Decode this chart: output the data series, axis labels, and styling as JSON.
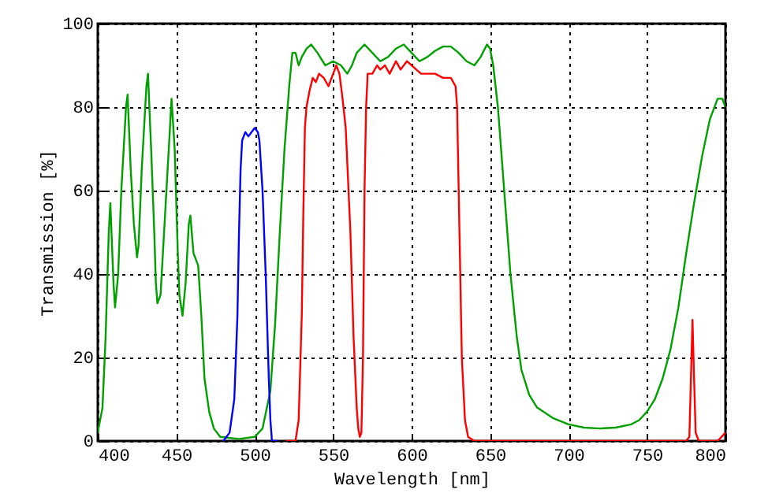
{
  "chart_data": {
    "type": "line",
    "xlabel": "Wavelength [nm]",
    "ylabel": "Transmission [%]",
    "xlim": [
      400,
      800
    ],
    "ylim": [
      0,
      100
    ],
    "xticks": [
      400,
      450,
      500,
      550,
      600,
      650,
      700,
      750,
      800
    ],
    "yticks": [
      0,
      20,
      40,
      60,
      80,
      100
    ],
    "grid": true,
    "line_style": "solid",
    "series": [
      {
        "color": "#00a000",
        "x": [
          400,
          403,
          405,
          407,
          408,
          410,
          411,
          413,
          415,
          418,
          419,
          421,
          423,
          425,
          426,
          428,
          431,
          432,
          434,
          436,
          437,
          438,
          440,
          443,
          446,
          447,
          449,
          451,
          452,
          454,
          456,
          458,
          459,
          461,
          464,
          466,
          468,
          471,
          474,
          478,
          490,
          500,
          505,
          510,
          513,
          516,
          519,
          522,
          524,
          526,
          528,
          530,
          533,
          536,
          540,
          545,
          550,
          555,
          559,
          562,
          565,
          570,
          575,
          580,
          585,
          590,
          595,
          600,
          605,
          610,
          615,
          620,
          625,
          630,
          635,
          640,
          644,
          648,
          650,
          652,
          655,
          657,
          660,
          663,
          667,
          670,
          675,
          680,
          690,
          700,
          710,
          720,
          730,
          740,
          745,
          750,
          755,
          760,
          765,
          770,
          775,
          780,
          785,
          790,
          795,
          798,
          800
        ],
        "values": [
          2,
          8,
          25,
          50,
          57,
          38,
          32,
          40,
          60,
          80,
          83,
          65,
          52,
          44,
          47,
          65,
          85,
          88,
          70,
          50,
          38,
          33,
          35,
          55,
          75,
          82,
          70,
          45,
          35,
          30,
          38,
          52,
          54,
          45,
          42,
          30,
          15,
          7,
          3,
          1,
          0.5,
          1,
          3,
          12,
          28,
          50,
          70,
          85,
          93,
          93,
          90,
          92,
          94,
          95,
          93,
          90,
          91,
          90,
          88,
          90,
          93,
          95,
          93,
          91,
          92,
          94,
          95,
          93,
          91,
          92,
          93.5,
          94.5,
          94.5,
          93,
          91,
          90,
          92,
          95,
          94,
          90,
          80,
          70,
          55,
          40,
          25,
          17,
          11,
          8,
          5.5,
          4,
          3.2,
          3,
          3.2,
          4,
          5,
          7,
          10,
          15,
          22,
          32,
          45,
          57,
          68,
          77,
          82,
          82,
          80
        ]
      },
      {
        "color": "#0000ff",
        "x": [
          480,
          484,
          487,
          489,
          490,
          491,
          492,
          494,
          496,
          498,
          500,
          502,
          503,
          505,
          507,
          509,
          510,
          511,
          515
        ],
        "values": [
          0,
          2,
          10,
          30,
          50,
          65,
          72,
          74,
          73,
          74,
          75,
          74,
          72,
          60,
          40,
          15,
          5,
          0,
          0
        ]
      },
      {
        "color": "#ff0000",
        "x": [
          520,
          526,
          528,
          530,
          531,
          532,
          533,
          535,
          537,
          539,
          541,
          544,
          547,
          550,
          552,
          554,
          556,
          558,
          561,
          563,
          565,
          566,
          567,
          568,
          569,
          570,
          571,
          572,
          575,
          578,
          580,
          583,
          586,
          590,
          593,
          597,
          600,
          603,
          606,
          610,
          615,
          620,
          625,
          628,
          629,
          630,
          631,
          632,
          634,
          636,
          640,
          775,
          777,
          778,
          779,
          780,
          781,
          783,
          795,
          800
        ],
        "values": [
          0,
          0,
          5,
          30,
          55,
          75,
          80,
          84,
          87,
          86,
          88,
          87,
          85,
          88,
          90,
          88,
          82,
          75,
          50,
          25,
          8,
          3,
          1,
          2,
          20,
          60,
          80,
          88,
          88,
          90,
          89,
          90,
          88,
          91,
          89,
          91,
          90,
          89,
          88,
          88,
          88,
          87,
          87,
          85,
          80,
          60,
          40,
          20,
          5,
          1,
          0,
          0,
          1,
          15,
          29,
          15,
          2,
          0,
          0,
          2
        ]
      }
    ]
  }
}
